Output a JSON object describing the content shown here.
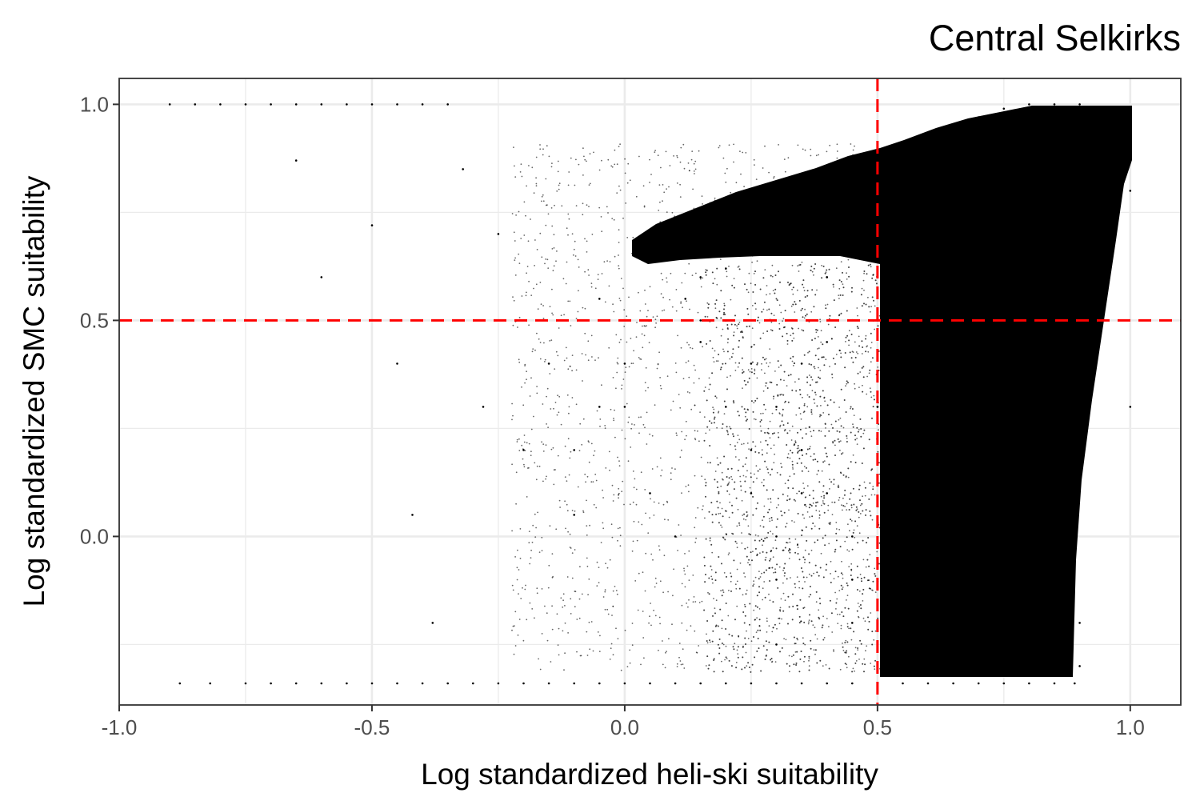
{
  "chart_data": {
    "type": "scatter",
    "title": "Central  Selkirks",
    "xlabel": "Log standardized heli-ski suitability",
    "ylabel": "Log standardized SMC suitability",
    "xlim": [
      -1.0,
      1.1
    ],
    "ylim": [
      -0.39,
      1.06
    ],
    "x_ticks": [
      -1.0,
      -0.5,
      0.0,
      0.5,
      1.0
    ],
    "x_tick_labels": [
      "-1.0",
      "-0.5",
      "0.0",
      "0.5",
      "1.0"
    ],
    "y_ticks": [
      0.0,
      0.5,
      1.0
    ],
    "y_tick_labels": [
      "0.0",
      "0.5",
      "1.0"
    ],
    "grid": true,
    "point_color": "#000000",
    "reference_lines": [
      {
        "orientation": "vertical",
        "x": 0.5,
        "color": "#ff0000",
        "style": "dashed"
      },
      {
        "orientation": "horizontal",
        "y": 0.5,
        "color": "#ff0000",
        "style": "dashed"
      }
    ],
    "series": [
      {
        "x": [
          -0.9,
          -0.85,
          -0.8,
          -0.75,
          -0.7,
          -0.65,
          -0.6,
          -0.55,
          -0.5,
          -0.45,
          -0.4,
          -0.35,
          -0.88,
          -0.82,
          -0.75,
          -0.7,
          -0.65,
          -0.6,
          -0.55,
          -0.5,
          -0.45,
          -0.4,
          -0.35,
          -0.3,
          -0.25,
          -0.2,
          -0.15,
          -0.1,
          -0.05,
          0.0,
          0.05,
          0.1,
          0.15,
          0.2,
          0.25,
          0.3,
          0.35,
          0.4,
          0.45,
          0.5,
          0.55,
          0.6,
          0.65,
          0.7,
          0.75,
          0.8,
          0.85,
          0.89,
          -0.65,
          -0.6,
          -0.5,
          -0.45,
          -0.42,
          -0.38,
          -0.32,
          -0.28,
          -0.25,
          -0.2,
          -0.15,
          -0.1,
          -0.05,
          0.0,
          0.05,
          0.08,
          0.1,
          0.12,
          0.15,
          0.2,
          0.25,
          0.3,
          0.35,
          0.4,
          0.45,
          0.5,
          0.55,
          0.6,
          0.65,
          0.7,
          0.75,
          0.8,
          0.85,
          0.9,
          0.95,
          1.0,
          0.02,
          0.05,
          0.1,
          0.15,
          0.2,
          0.25,
          0.3,
          0.35,
          0.4,
          0.45,
          0.5,
          0.55,
          0.6,
          0.65,
          0.7,
          0.75,
          0.8,
          0.85,
          0.9,
          0.95,
          1.0,
          -0.1,
          -0.05,
          0.0,
          0.05,
          0.1,
          0.15,
          0.2,
          0.25,
          0.3,
          0.35,
          0.4,
          0.45,
          0.5,
          0.55,
          0.6,
          0.65,
          0.7,
          0.75,
          0.8,
          0.85,
          0.9,
          0.95,
          0.2,
          0.25,
          0.3,
          0.35,
          0.4,
          0.45,
          0.5,
          0.55,
          0.6,
          0.65,
          0.7,
          0.75,
          0.8,
          0.85,
          0.9,
          0.94,
          0.3,
          0.35,
          0.4,
          0.45,
          0.5,
          0.55,
          0.6,
          0.65,
          0.7,
          0.75,
          0.8,
          0.85,
          0.9,
          0.95
        ],
        "y": [
          1.0,
          1.0,
          1.0,
          1.0,
          1.0,
          1.0,
          1.0,
          1.0,
          1.0,
          1.0,
          1.0,
          1.0,
          -0.34,
          -0.34,
          -0.34,
          -0.34,
          -0.34,
          -0.34,
          -0.34,
          -0.34,
          -0.34,
          -0.34,
          -0.34,
          -0.34,
          -0.34,
          -0.34,
          -0.34,
          -0.34,
          -0.34,
          -0.34,
          -0.34,
          -0.34,
          -0.34,
          -0.34,
          -0.34,
          -0.34,
          -0.34,
          -0.34,
          -0.34,
          -0.34,
          -0.34,
          -0.34,
          -0.34,
          -0.34,
          -0.34,
          -0.34,
          -0.34,
          -0.34,
          0.87,
          0.6,
          0.72,
          0.4,
          0.05,
          -0.2,
          0.85,
          0.3,
          0.7,
          0.2,
          0.4,
          0.05,
          0.55,
          0.3,
          0.7,
          0.68,
          0.65,
          0.55,
          0.45,
          0.62,
          0.7,
          0.73,
          0.76,
          0.79,
          0.85,
          0.88,
          0.9,
          0.93,
          0.95,
          0.97,
          0.99,
          1.0,
          1.0,
          1.0,
          0.9,
          0.8,
          0.66,
          0.7,
          0.68,
          0.6,
          0.5,
          0.4,
          0.3,
          0.2,
          0.1,
          0.0,
          -0.1,
          -0.2,
          -0.3,
          0.8,
          0.6,
          0.4,
          0.2,
          0.0,
          -0.2,
          0.6,
          0.3,
          0.2,
          0.3,
          0.4,
          0.1,
          0.0,
          0.5,
          0.3,
          0.1,
          -0.1,
          0.2,
          0.6,
          0.7,
          0.5,
          0.3,
          0.1,
          -0.1,
          0.4,
          0.2,
          0.0,
          -0.2,
          0.7,
          0.6,
          0.5,
          0.2,
          0.0,
          0.4,
          0.6,
          -0.2,
          0.3,
          0.8,
          0.5,
          0.1,
          0.7,
          0.2,
          0.9,
          0.6,
          -0.3,
          0.5,
          -0.25,
          0.1,
          0.45,
          -0.1,
          0.3,
          0.7,
          0.0,
          0.4,
          0.8,
          0.2,
          0.5,
          0.9,
          0.35,
          0.65
        ]
      }
    ]
  }
}
